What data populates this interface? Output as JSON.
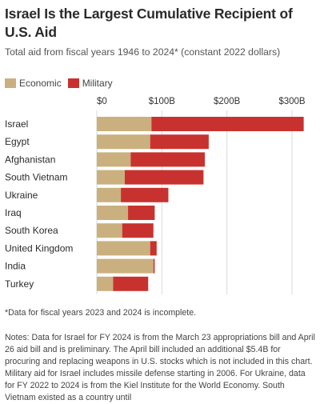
{
  "title": "Israel Is the Largest Cumulative Recipient of U.S. Aid",
  "subtitle": "Total aid from fiscal years 1946 to 2024* (constant 2022 dollars)",
  "legend": {
    "economic_label": "Economic",
    "military_label": "Military"
  },
  "colors": {
    "economic": "#c9b07e",
    "military": "#c8322e",
    "gridline": "#d9d9d9"
  },
  "chart_data": {
    "type": "bar",
    "orientation": "horizontal",
    "stacked": true,
    "categories": [
      "Israel",
      "Egypt",
      "Afghanistan",
      "South Vietnam",
      "Ukraine",
      "Iraq",
      "South Korea",
      "United Kingdom",
      "India",
      "Turkey"
    ],
    "series": [
      {
        "name": "Economic",
        "values": [
          84,
          82,
          52,
          43,
          37,
          48,
          39,
          82,
          87,
          25
        ]
      },
      {
        "name": "Military",
        "values": [
          234,
          90,
          114,
          121,
          73,
          41,
          48,
          10,
          2,
          54
        ]
      }
    ],
    "x_ticks": [
      "$0",
      "$100B",
      "$200B",
      "$300B"
    ],
    "x_tick_values": [
      0,
      100,
      200,
      300
    ],
    "xlim": [
      0,
      320
    ],
    "unit": "billions of constant 2022 dollars",
    "grid": true,
    "legend_position": "top-left"
  },
  "footnote": "*Data for fiscal years 2023 and 2024 is incomplete.",
  "notes": "Notes: Data for Israel for FY 2024 is from the March 23 appropriations bill and April 26 aid bill and is preliminary. The April bill included an additional $5.4B for procuring and replacing weapons in U.S. stocks which is not included in this chart. Military aid for Israel includes missile defense starting in 2006. For Ukraine, data for FY 2022 to 2024 is from the Kiel Institute for the World Economy. South Vietnam existed as a country until"
}
